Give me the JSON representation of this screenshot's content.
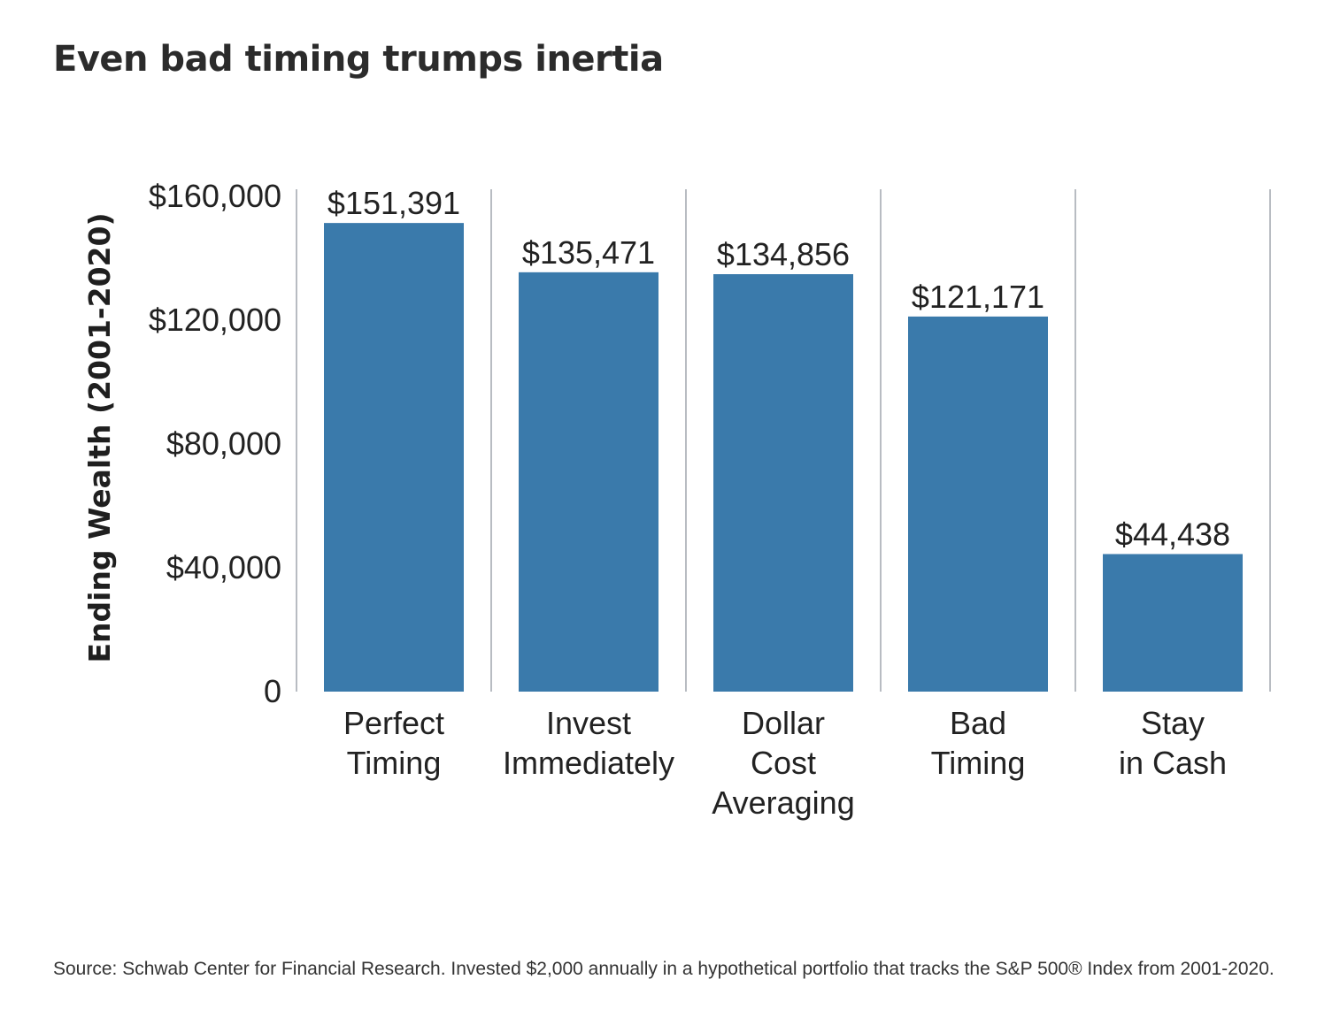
{
  "chart_data": {
    "type": "bar",
    "title": "Even bad timing trumps inertia",
    "ylabel": "Ending Wealth (2001-2020)",
    "xlabel": "",
    "categories": [
      [
        "Perfect",
        "Timing"
      ],
      [
        "Invest",
        "Immediately"
      ],
      [
        "Dollar",
        "Cost",
        "Averaging"
      ],
      [
        "Bad",
        "Timing"
      ],
      [
        "Stay",
        "in Cash"
      ]
    ],
    "values": [
      151391,
      135471,
      134856,
      121171,
      44438
    ],
    "value_labels": [
      "$151,391",
      "$135,471",
      "$134,856",
      "$121,171",
      "$44,438"
    ],
    "ylim": [
      0,
      160000
    ],
    "yticks": [
      0,
      40000,
      80000,
      120000,
      160000
    ],
    "ytick_labels": [
      "0",
      "$40,000",
      "$80,000",
      "$120,000",
      "$160,000"
    ],
    "bar_color": "#3a7aab",
    "divider_color": "#b8bcc2",
    "grid": false,
    "legend": "none"
  },
  "footer": {
    "source": "Source: Schwab Center for Financial Research. Invested $2,000 annually in a hypothetical portfolio that tracks the S&P 500® Index from 2001-2020."
  }
}
